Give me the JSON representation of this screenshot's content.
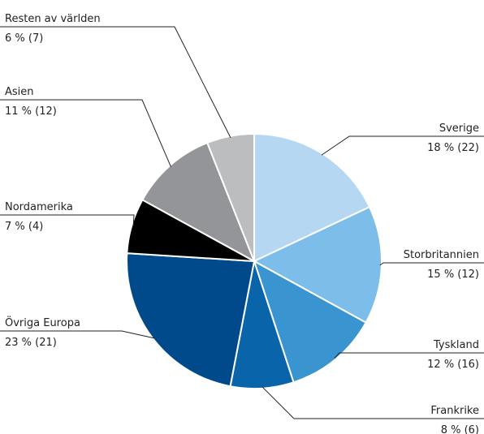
{
  "chart_data": {
    "type": "pie",
    "categories": [
      "Sverige",
      "Storbritannien",
      "Tyskland",
      "Frankrike",
      "Övriga Europa",
      "Nordamerika",
      "Asien",
      "Resten av världen"
    ],
    "values": [
      18,
      15,
      12,
      8,
      23,
      7,
      11,
      6
    ],
    "value_labels": [
      "18 % (22)",
      "15 % (12)",
      "12 % (16)",
      "8 % (6)",
      "23 % (21)",
      "7 % (4)",
      "11 % (12)",
      "6 % (7)"
    ],
    "colors": [
      "#b6d7f1",
      "#7dbde9",
      "#3a94cf",
      "#0a64aa",
      "#004a8c",
      "#000000",
      "#939598",
      "#bcbdbf"
    ]
  }
}
